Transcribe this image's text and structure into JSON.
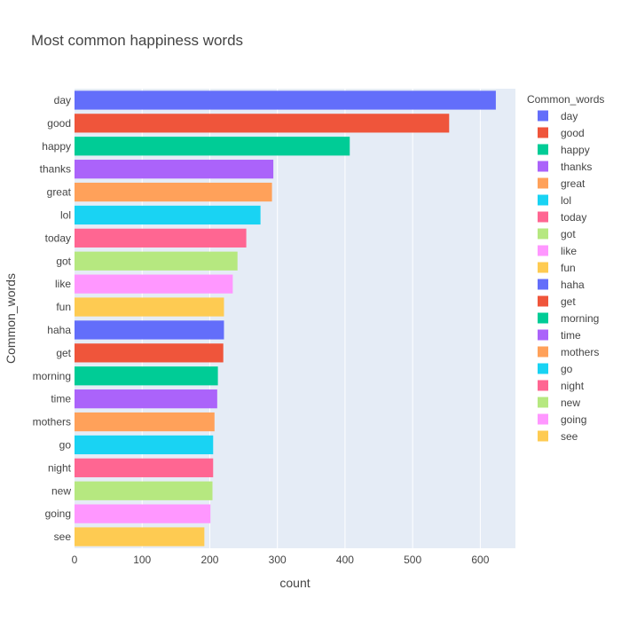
{
  "chart_data": {
    "type": "bar",
    "orientation": "horizontal",
    "title": "Most common happiness words",
    "xlabel": "count",
    "ylabel": "Common_words",
    "xlim": [
      0,
      652
    ],
    "x_ticks": [
      0,
      100,
      200,
      300,
      400,
      500,
      600
    ],
    "grid": true,
    "legend": {
      "title": "Common_words",
      "placement": "right"
    },
    "categories": [
      "day",
      "good",
      "happy",
      "thanks",
      "great",
      "lol",
      "today",
      "got",
      "like",
      "fun",
      "haha",
      "get",
      "morning",
      "time",
      "mothers",
      "go",
      "night",
      "new",
      "going",
      "see"
    ],
    "values": [
      623,
      554,
      407,
      294,
      292,
      275,
      254,
      241,
      234,
      221,
      221,
      220,
      212,
      211,
      207,
      205,
      205,
      204,
      201,
      192
    ],
    "colors": [
      "#636efa",
      "#EF553B",
      "#00cc96",
      "#ab63fa",
      "#FFA15A",
      "#19d3f3",
      "#FF6692",
      "#B6E880",
      "#FF97FF",
      "#FECB52",
      "#636efa",
      "#EF553B",
      "#00cc96",
      "#ab63fa",
      "#FFA15A",
      "#19d3f3",
      "#FF6692",
      "#B6E880",
      "#FF97FF",
      "#FECB52"
    ]
  }
}
